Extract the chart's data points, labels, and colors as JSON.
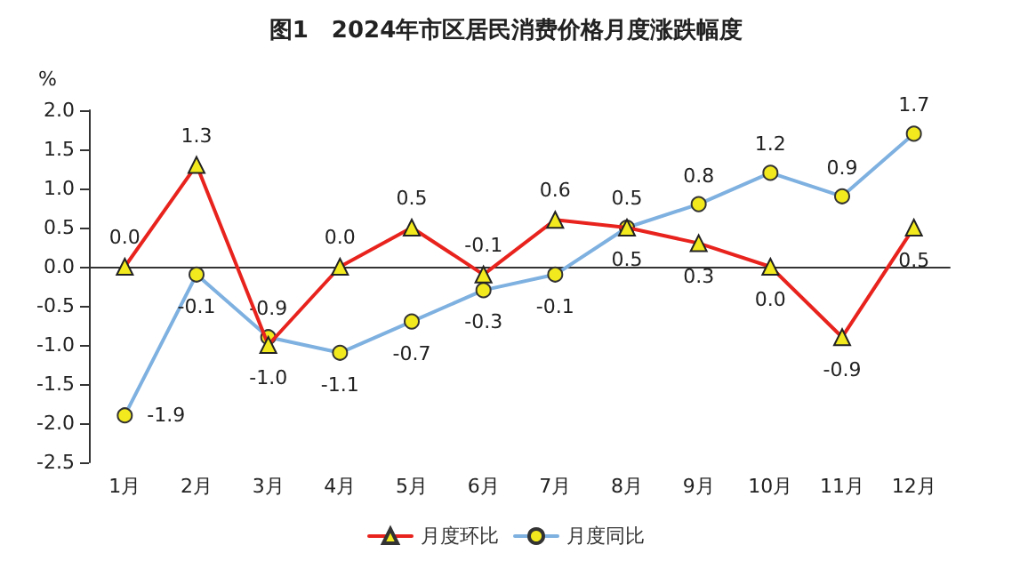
{
  "chart_data": {
    "type": "line",
    "title": "图1　2024年市区居民消费价格月度涨跌幅度",
    "ylabel": "%",
    "categories": [
      "1月",
      "2月",
      "3月",
      "4月",
      "5月",
      "6月",
      "7月",
      "8月",
      "9月",
      "10月",
      "11月",
      "12月"
    ],
    "series": [
      {
        "name": "月度环比",
        "color": "#e8231e",
        "marker": "triangle",
        "values": [
          0.0,
          1.3,
          -1.0,
          0.0,
          0.5,
          -0.1,
          0.6,
          0.5,
          0.3,
          0.0,
          -0.9,
          0.5
        ],
        "value_labels": [
          "0.0",
          "1.3",
          "-1.0",
          "0.0",
          "0.5",
          "-0.1",
          "0.6",
          "0.5",
          "0.3",
          "0.0",
          "-0.9",
          "0.5"
        ]
      },
      {
        "name": "月度同比",
        "color": "#7eb0e0",
        "marker": "circle",
        "values": [
          -1.9,
          -0.1,
          -0.9,
          -1.1,
          -0.7,
          -0.3,
          -0.1,
          0.5,
          0.8,
          1.2,
          0.9,
          1.7
        ],
        "value_labels": [
          "-1.9",
          "-0.1",
          "-0.9",
          "-1.1",
          "-0.7",
          "-0.3",
          "-0.1",
          "0.5",
          "0.8",
          "1.2",
          "0.9",
          "1.7"
        ]
      }
    ],
    "ylim": [
      -2.5,
      2.0
    ],
    "yticks": [
      {
        "value": -2.5,
        "label": "-2.5"
      },
      {
        "value": -2,
        "label": "-2.0"
      },
      {
        "value": -1.5,
        "label": "-1.5"
      },
      {
        "value": -1,
        "label": "-1.0"
      },
      {
        "value": -0.5,
        "label": "-0.5"
      },
      {
        "value": 0,
        "label": "0.0"
      },
      {
        "value": 0.5,
        "label": "0.5"
      },
      {
        "value": 1,
        "label": "1.0"
      },
      {
        "value": 1.5,
        "label": "1.5"
      },
      {
        "value": 2,
        "label": "2.0"
      }
    ],
    "legend": "bottom",
    "line_style": "solid"
  }
}
